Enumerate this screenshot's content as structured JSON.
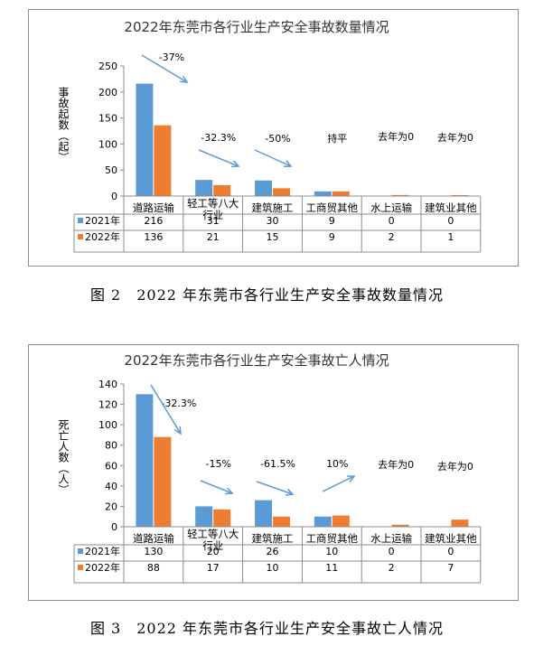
{
  "chart_data": [
    {
      "type": "bar",
      "title": "2022年东莞市各行业生产安全事故数量情况",
      "ylabel": "事故起数（起）",
      "ylim": [
        0,
        250
      ],
      "yticks": [
        0,
        50,
        100,
        150,
        200,
        250
      ],
      "categories": [
        "道路运输",
        "轻工等八大行业",
        "建筑施工",
        "工商贸其他",
        "水上运输",
        "建筑业其他"
      ],
      "category_lines": [
        [
          "道路运输"
        ],
        [
          "轻工等八大",
          "行业"
        ],
        [
          "建筑施工"
        ],
        [
          "工商贸其他"
        ],
        [
          "水上运输"
        ],
        [
          "建筑业其他"
        ]
      ],
      "series": [
        {
          "name": "2021年",
          "color": "#5b9bd5",
          "values": [
            216,
            31,
            30,
            9,
            0,
            0
          ]
        },
        {
          "name": "2022年",
          "color": "#ed7d31",
          "values": [
            136,
            21,
            15,
            9,
            2,
            1
          ]
        }
      ],
      "annotations": [
        "-37%",
        "-32.3%",
        "-50%",
        "持平",
        "去年为0",
        "去年为0"
      ],
      "legend": "data-table",
      "grid": false
    },
    {
      "type": "bar",
      "title": "2022年东莞市各行业生产安全事故亡人情况",
      "ylabel": "死亡人数（人）",
      "ylim": [
        0,
        140
      ],
      "yticks": [
        0,
        20,
        40,
        60,
        80,
        100,
        120,
        140
      ],
      "categories": [
        "道路运输",
        "轻工等八大行业",
        "建筑施工",
        "工商贸其他",
        "水上运输",
        "建筑业其他"
      ],
      "category_lines": [
        [
          "道路运输"
        ],
        [
          "轻工等八大",
          "行业"
        ],
        [
          "建筑施工"
        ],
        [
          "工商贸其他"
        ],
        [
          "水上运输"
        ],
        [
          "建筑业其他"
        ]
      ],
      "series": [
        {
          "name": "2021年",
          "color": "#5b9bd5",
          "values": [
            130,
            20,
            26,
            10,
            0,
            0
          ]
        },
        {
          "name": "2022年",
          "color": "#ed7d31",
          "values": [
            88,
            17,
            10,
            11,
            2,
            7
          ]
        }
      ],
      "annotations": [
        "-32.3%",
        "-15%",
        "-61.5%",
        "10%",
        "去年为0",
        "去年为0"
      ],
      "legend": "data-table",
      "grid": false
    }
  ],
  "captions": [
    "图 2　2022 年东莞市各行业生产安全事故数量情况",
    "图 3　2022 年东莞市各行业生产安全事故亡人情况"
  ]
}
